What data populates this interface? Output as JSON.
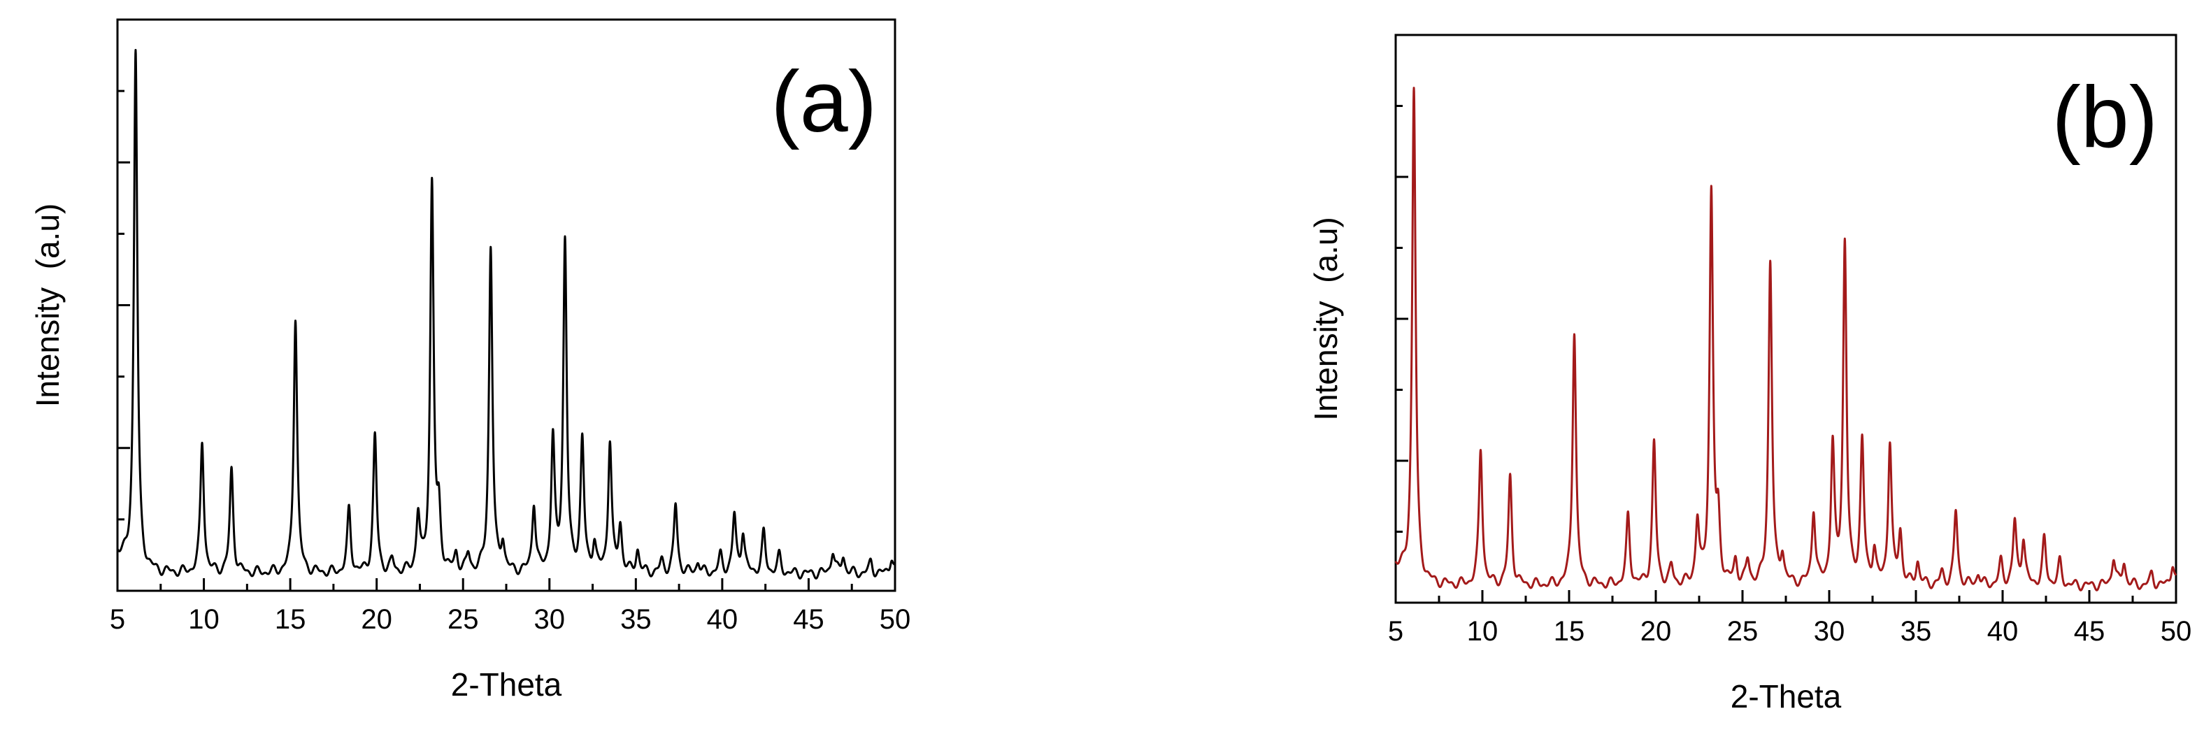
{
  "chart_data": [
    {
      "id": "a",
      "type": "line",
      "panel_label": "(a)",
      "title": "",
      "xlabel": "2-Theta",
      "ylabel": "Intensity  (a.u)",
      "xlim": [
        5,
        50
      ],
      "ylim": [
        0,
        100
      ],
      "xticks": [
        5,
        10,
        15,
        20,
        25,
        30,
        35,
        40,
        45,
        50
      ],
      "xtick_labels": [
        "5",
        "10",
        "15",
        "20",
        "25",
        "30",
        "35",
        "40",
        "45",
        "50"
      ],
      "yticks_major": [
        0,
        25,
        50,
        75,
        100
      ],
      "yticks_minor": [
        12.5,
        37.5,
        62.5,
        87.5
      ],
      "grid": false,
      "colors": {
        "line": "#000000",
        "axis": "#000000",
        "text": "#000000"
      },
      "baseline": 3,
      "peaks": [
        {
          "x": 6.05,
          "h": 91,
          "w": 0.12
        },
        {
          "x": 9.9,
          "h": 23,
          "w": 0.12
        },
        {
          "x": 11.6,
          "h": 18,
          "w": 0.12
        },
        {
          "x": 15.3,
          "h": 45,
          "w": 0.12
        },
        {
          "x": 18.4,
          "h": 11,
          "w": 0.12
        },
        {
          "x": 19.9,
          "h": 24,
          "w": 0.12
        },
        {
          "x": 20.9,
          "h": 2,
          "w": 0.12
        },
        {
          "x": 22.4,
          "h": 10,
          "w": 0.12
        },
        {
          "x": 23.2,
          "h": 68,
          "w": 0.12
        },
        {
          "x": 23.6,
          "h": 9,
          "w": 0.12
        },
        {
          "x": 24.6,
          "h": 3,
          "w": 0.12
        },
        {
          "x": 25.3,
          "h": 3,
          "w": 0.12
        },
        {
          "x": 26.6,
          "h": 57,
          "w": 0.12
        },
        {
          "x": 27.3,
          "h": 5,
          "w": 0.12
        },
        {
          "x": 29.1,
          "h": 12,
          "w": 0.12
        },
        {
          "x": 30.2,
          "h": 23,
          "w": 0.12
        },
        {
          "x": 30.9,
          "h": 58,
          "w": 0.12
        },
        {
          "x": 31.9,
          "h": 23,
          "w": 0.12
        },
        {
          "x": 32.6,
          "h": 5,
          "w": 0.12
        },
        {
          "x": 33.5,
          "h": 23,
          "w": 0.12
        },
        {
          "x": 34.1,
          "h": 8,
          "w": 0.12
        },
        {
          "x": 35.1,
          "h": 4,
          "w": 0.12
        },
        {
          "x": 36.5,
          "h": 2,
          "w": 0.12
        },
        {
          "x": 37.3,
          "h": 12,
          "w": 0.12
        },
        {
          "x": 38.6,
          "h": 2,
          "w": 0.12
        },
        {
          "x": 39.9,
          "h": 3,
          "w": 0.12
        },
        {
          "x": 40.7,
          "h": 10,
          "w": 0.12
        },
        {
          "x": 41.2,
          "h": 7,
          "w": 0.12
        },
        {
          "x": 42.4,
          "h": 7,
          "w": 0.12
        },
        {
          "x": 43.3,
          "h": 3,
          "w": 0.12
        },
        {
          "x": 46.4,
          "h": 4,
          "w": 0.12
        },
        {
          "x": 47.0,
          "h": 3,
          "w": 0.12
        },
        {
          "x": 48.6,
          "h": 2,
          "w": 0.12
        },
        {
          "x": 49.8,
          "h": 3,
          "w": 0.12
        }
      ]
    },
    {
      "id": "b",
      "type": "line",
      "panel_label": "(b)",
      "title": "",
      "xlabel": "2-Theta",
      "ylabel": "Intensity  (a.u)",
      "xlim": [
        5,
        50
      ],
      "ylim": [
        0,
        100
      ],
      "xticks": [
        5,
        10,
        15,
        20,
        25,
        30,
        35,
        40,
        45,
        50
      ],
      "xtick_labels": [
        "5",
        "10",
        "15",
        "20",
        "25",
        "30",
        "35",
        "40",
        "45",
        "50"
      ],
      "yticks_major": [
        0,
        25,
        50,
        75,
        100
      ],
      "yticks_minor": [
        12.5,
        37.5,
        62.5,
        87.5
      ],
      "grid": false,
      "colors": {
        "line": "#a31a1a",
        "axis": "#000000",
        "text": "#000000"
      },
      "baseline": 3,
      "peaks": [
        {
          "x": 6.05,
          "h": 87,
          "w": 0.12
        },
        {
          "x": 9.9,
          "h": 24,
          "w": 0.12
        },
        {
          "x": 11.6,
          "h": 19,
          "w": 0.12
        },
        {
          "x": 15.3,
          "h": 45,
          "w": 0.12
        },
        {
          "x": 18.4,
          "h": 12,
          "w": 0.12
        },
        {
          "x": 19.9,
          "h": 25,
          "w": 0.12
        },
        {
          "x": 20.9,
          "h": 3,
          "w": 0.12
        },
        {
          "x": 22.4,
          "h": 11,
          "w": 0.12
        },
        {
          "x": 23.2,
          "h": 69,
          "w": 0.12
        },
        {
          "x": 23.6,
          "h": 10,
          "w": 0.12
        },
        {
          "x": 24.6,
          "h": 4,
          "w": 0.12
        },
        {
          "x": 25.3,
          "h": 4,
          "w": 0.12
        },
        {
          "x": 26.6,
          "h": 57,
          "w": 0.12
        },
        {
          "x": 27.3,
          "h": 5,
          "w": 0.12
        },
        {
          "x": 29.1,
          "h": 13,
          "w": 0.12
        },
        {
          "x": 30.2,
          "h": 24,
          "w": 0.12
        },
        {
          "x": 30.9,
          "h": 60,
          "w": 0.12
        },
        {
          "x": 31.9,
          "h": 25,
          "w": 0.12
        },
        {
          "x": 32.6,
          "h": 6,
          "w": 0.12
        },
        {
          "x": 33.5,
          "h": 25,
          "w": 0.12
        },
        {
          "x": 34.1,
          "h": 9,
          "w": 0.12
        },
        {
          "x": 35.1,
          "h": 4,
          "w": 0.12
        },
        {
          "x": 36.5,
          "h": 2,
          "w": 0.12
        },
        {
          "x": 37.3,
          "h": 13,
          "w": 0.12
        },
        {
          "x": 38.6,
          "h": 2,
          "w": 0.12
        },
        {
          "x": 39.9,
          "h": 4,
          "w": 0.12
        },
        {
          "x": 40.7,
          "h": 11,
          "w": 0.12
        },
        {
          "x": 41.2,
          "h": 8,
          "w": 0.12
        },
        {
          "x": 42.4,
          "h": 8,
          "w": 0.12
        },
        {
          "x": 43.3,
          "h": 4,
          "w": 0.12
        },
        {
          "x": 46.4,
          "h": 5,
          "w": 0.12
        },
        {
          "x": 47.0,
          "h": 4,
          "w": 0.12
        },
        {
          "x": 48.6,
          "h": 2,
          "w": 0.12
        },
        {
          "x": 49.8,
          "h": 4,
          "w": 0.12
        }
      ]
    }
  ]
}
